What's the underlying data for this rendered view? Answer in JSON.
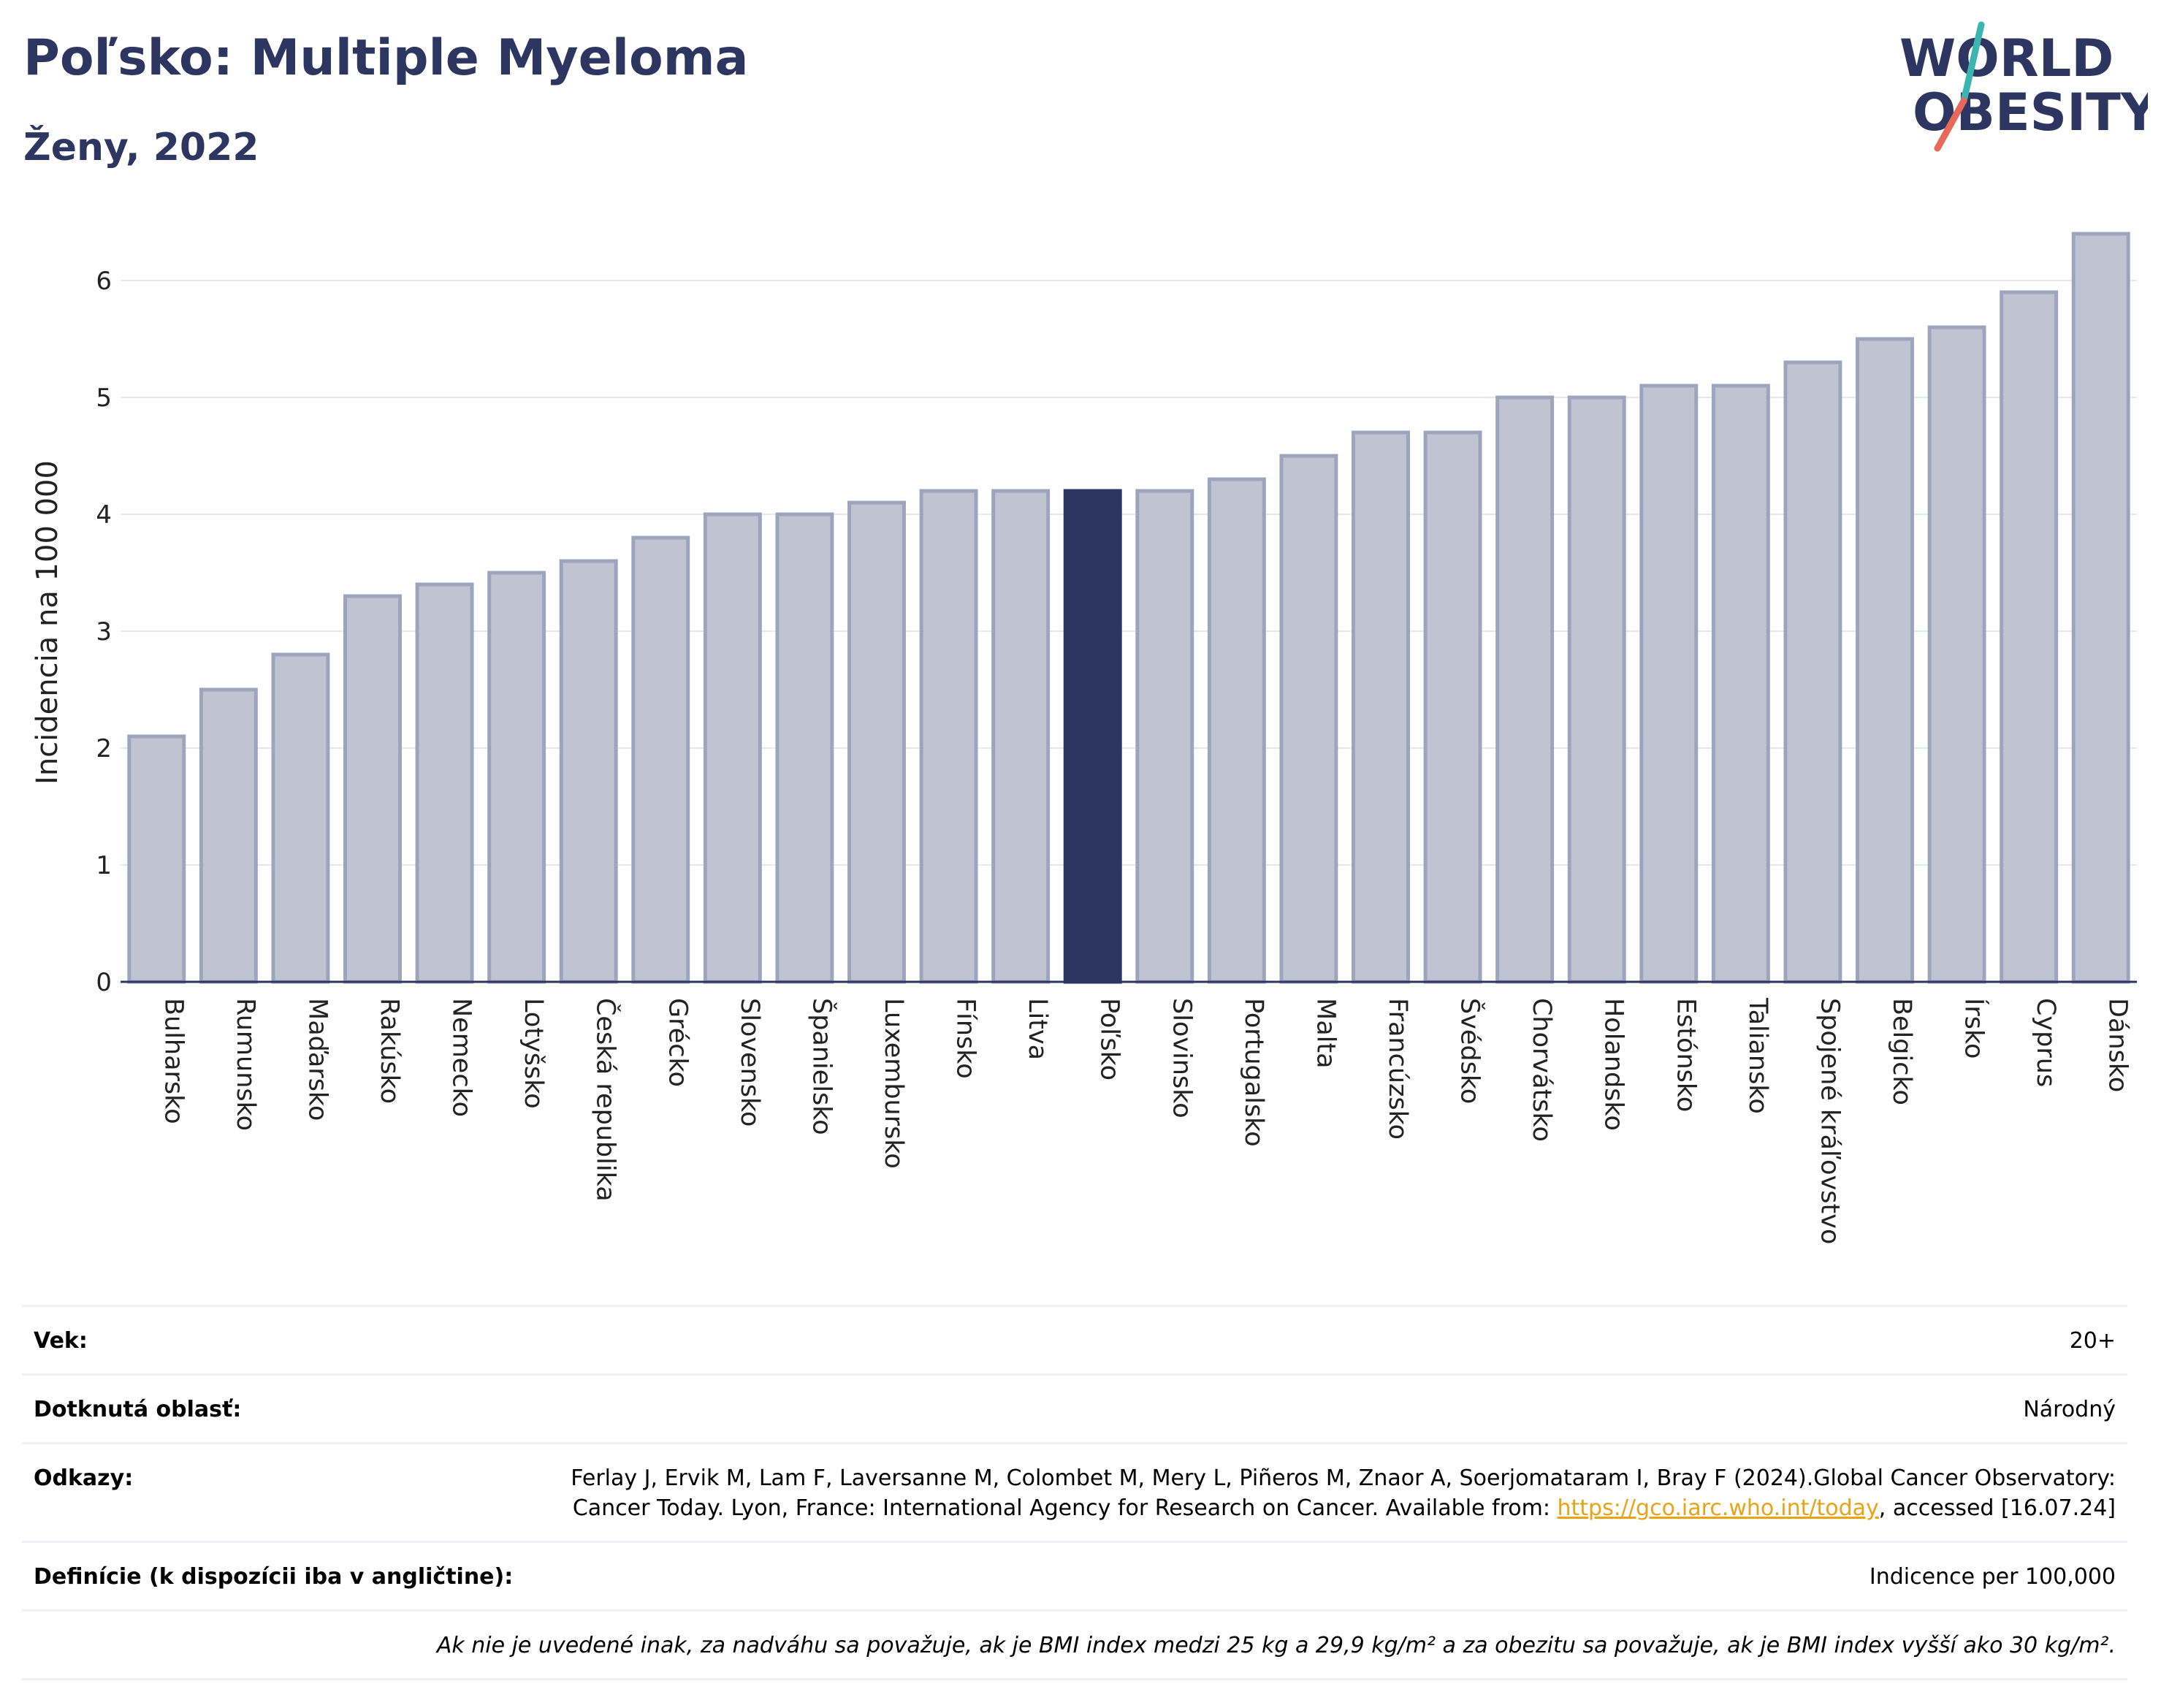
{
  "header": {
    "title": "Poľsko: Multiple Myeloma",
    "subtitle": "Ženy, 2022"
  },
  "logo": {
    "line1": "WORLD",
    "line2": "OBESITY",
    "colors": {
      "text": "#2d3561",
      "slash_top": "#3bb5b0",
      "slash_bottom": "#e8685a"
    }
  },
  "chart_data": {
    "type": "bar",
    "ylabel": "Incidencia na 100 000",
    "xlabel": "",
    "ylim": [
      0,
      6.4
    ],
    "yticks": [
      0,
      1,
      2,
      3,
      4,
      5,
      6
    ],
    "grid": true,
    "highlight": "Poľsko",
    "colors": {
      "bar": "#c0c3d2",
      "bar_border": "#9fa4bd",
      "highlight": "#2d3561"
    },
    "categories": [
      "Bulharsko",
      "Rumunsko",
      "Maďarsko",
      "Rakúsko",
      "Nemecko",
      "Lotyšsko",
      "Česká republika",
      "Grécko",
      "Slovensko",
      "Španielsko",
      "Luxembursko",
      "Fínsko",
      "Litva",
      "Poľsko",
      "Slovinsko",
      "Portugalsko",
      "Malta",
      "Francúzsko",
      "Švédsko",
      "Chorvátsko",
      "Holandsko",
      "Estónsko",
      "Taliansko",
      "Spojené kráľovstvo",
      "Belgicko",
      "Írsko",
      "Cyprus",
      "Dánsko"
    ],
    "values": [
      2.1,
      2.5,
      2.8,
      3.3,
      3.4,
      3.5,
      3.6,
      3.8,
      4.0,
      4.0,
      4.1,
      4.2,
      4.2,
      4.2,
      4.2,
      4.3,
      4.5,
      4.7,
      4.7,
      5.0,
      5.0,
      5.1,
      5.1,
      5.3,
      5.5,
      5.6,
      5.9,
      6.4
    ]
  },
  "meta": {
    "age_label": "Vek:",
    "age_value": "20+",
    "area_label": "Dotknutá oblasť:",
    "area_value": "Národný",
    "refs_label": "Odkazy:",
    "refs_text": "Ferlay J, Ervik M, Lam F, Laversanne M, Colombet M, Mery L, Piñeros M, Znaor A, Soerjomataram I, Bray F (2024).Global Cancer Observatory: Cancer Today. Lyon, France: International Agency for Research on Cancer. Available from:",
    "refs_link": "https://gco.iarc.who.int/today",
    "refs_tail": ", accessed [16.07.24]",
    "def_label": "Definície (k dispozícii iba v angličtine):",
    "def_value": "Indicence per 100,000",
    "note": "Ak nie je uvedené inak, za nadváhu sa považuje, ak je BMI index medzi 25 kg a 29,9 kg/m² a za obezitu sa považuje, ak je BMI index vyšší ako 30 kg/m²."
  }
}
